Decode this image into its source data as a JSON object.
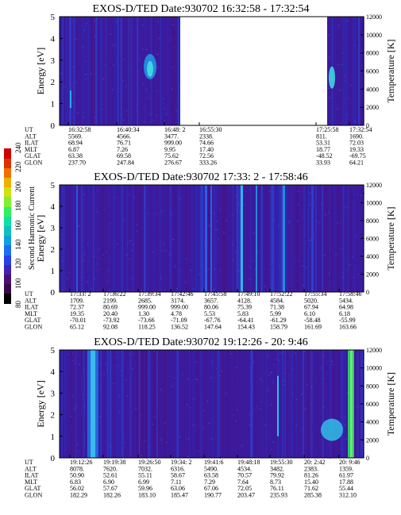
{
  "colorbar": {
    "title": "Second Harmonic Current",
    "ticks": [
      "80",
      "100",
      "120",
      "140",
      "160",
      "180",
      "200",
      "220",
      "240"
    ],
    "colors": [
      "#000000",
      "#3a0a46",
      "#4a1078",
      "#4024b0",
      "#2a40e8",
      "#1a70f0",
      "#10a0e0",
      "#10c0c0",
      "#10e0a0",
      "#30f060",
      "#80f030",
      "#d0e010",
      "#f0b000",
      "#f07000",
      "#e03000",
      "#d00000"
    ]
  },
  "panels": [
    {
      "title": "EXOS-D/TED   Date:930702  16:32:58 - 17:32:54",
      "ylabel": "Energy [eV]",
      "y2label": "Temperature [K]",
      "yticks": [
        "0",
        "1",
        "2",
        "3",
        "4",
        "5"
      ],
      "y2ticks": [
        "0",
        "2000",
        "4000",
        "6000",
        "8000",
        "10000",
        "12000"
      ],
      "row_labels": [
        "UT",
        "ALT",
        "ILAT",
        "MLT",
        "GLAT",
        "GLON"
      ],
      "columns": [
        [
          "16:32:58",
          "5569.",
          "68.94",
          "6.87",
          "63.38",
          "237.70"
        ],
        [
          "16:40:34",
          "4566.",
          "76.71",
          "7.26",
          "69.58",
          "247.84"
        ],
        [
          "16:48: 2",
          "3477.",
          "999.00",
          "9.95",
          "75.62",
          "276.67"
        ],
        [
          "16:55:30",
          "2338.",
          "74.66",
          "17.40",
          "72.56",
          "333.26"
        ],
        [
          "17:25:58",
          "811.",
          "53.31",
          "18.77",
          "-48.52",
          "33.93"
        ],
        [
          "17:32:54",
          "1690.",
          "72.03",
          "19.33",
          "-69.75",
          "64.21"
        ]
      ]
    },
    {
      "title": "EXOS-D/TED   Date:930702  17:33: 2 - 17:58:46",
      "ylabel": "Energy [eV]",
      "y2label": "Temperature [K]",
      "yticks": [
        "0",
        "1",
        "2",
        "3",
        "4",
        "5"
      ],
      "y2ticks": [
        "0",
        "2000",
        "4000",
        "6000",
        "8000",
        "10000",
        "12000"
      ],
      "row_labels": [
        "UT",
        "ALT",
        "ILAT",
        "MLT",
        "GLAT",
        "GLON"
      ],
      "columns": [
        [
          "17:33: 2",
          "1709.",
          "72.37",
          "19.35",
          "-70.01",
          "65.12"
        ],
        [
          "17:36:22",
          "2199.",
          "80.69",
          "20.40",
          "-73.92",
          "92.08"
        ],
        [
          "17:39:34",
          "2685.",
          "999.00",
          "1.30",
          "-73.66",
          "118.25"
        ],
        [
          "17:42:46",
          "3174.",
          "999.00",
          "4.78",
          "-71.09",
          "136.52"
        ],
        [
          "17:45:58",
          "3657.",
          "80.06",
          "5.53",
          "-67.76",
          "147.64"
        ],
        [
          "17:49:10",
          "4128.",
          "75.39",
          "5.83",
          "-64.41",
          "154.43"
        ],
        [
          "17:52:22",
          "4584.",
          "71.38",
          "5.99",
          "-61.29",
          "158.79"
        ],
        [
          "17:55:34",
          "5020.",
          "67.94",
          "6.10",
          "-58.48",
          "161.69"
        ],
        [
          "17:58:46",
          "5434.",
          "64.98",
          "6.18",
          "-55.99",
          "163.66"
        ]
      ]
    },
    {
      "title": "EXOS-D/TED   Date:930702  19:12:26 - 20: 9:46",
      "ylabel": "Energy [eV]",
      "y2label": "Temperature [K]",
      "yticks": [
        "0",
        "1",
        "2",
        "3",
        "4",
        "5"
      ],
      "y2ticks": [
        "0",
        "2000",
        "4000",
        "6000",
        "8000",
        "10000",
        "12000"
      ],
      "row_labels": [
        "UT",
        "ALT",
        "ILAT",
        "MLT",
        "GLAT",
        "GLON"
      ],
      "columns": [
        [
          "19:12:26",
          "8078.",
          "50.90",
          "6.83",
          "56.02",
          "182.29"
        ],
        [
          "19:19:38",
          "7620.",
          "52.61",
          "6.90",
          "57.67",
          "182.26"
        ],
        [
          "19:26:50",
          "7032.",
          "55.11",
          "6.99",
          "59.96",
          "183.10"
        ],
        [
          "19:34: 2",
          "6316.",
          "58.67",
          "7.11",
          "63.06",
          "185.47"
        ],
        [
          "19:41:6",
          "5490.",
          "63.58",
          "7.29",
          "67.06",
          "190.77"
        ],
        [
          "19:48:18",
          "4534.",
          "70.57",
          "7.64",
          "72.05",
          "203.47"
        ],
        [
          "19:55:30",
          "3482.",
          "79.92",
          "8.73",
          "76.11",
          "235.93"
        ],
        [
          "20: 2:42",
          "2383.",
          "81.26",
          "15.40",
          "71.62",
          "285.38"
        ],
        [
          "20: 9:46",
          "1359.",
          "61.97",
          "17.88",
          "55.44",
          "312.10"
        ]
      ]
    }
  ],
  "chart_data": [
    {
      "type": "heatmap",
      "title": "EXOS-D/TED   Date:930702  16:32:58 - 17:32:54",
      "ylabel": "Energy [eV]",
      "y2label": "Temperature [K]",
      "ylim": [
        0,
        5
      ],
      "y2lim": [
        0,
        12000
      ],
      "x_tick_labels": [
        "16:32:58",
        "16:40:34",
        "16:48: 2",
        "16:55:30",
        "17:25:58",
        "17:32:54"
      ],
      "data_gap": [
        "16:55:30",
        "17:25:58"
      ],
      "features": [
        {
          "ut_range": [
            "16:36:40",
            "16:37:10"
          ],
          "energy_range": [
            0.8,
            1.6
          ],
          "level": "high"
        },
        {
          "ut_range": [
            "16:52:00",
            "16:54:40"
          ],
          "energy_range": [
            2.2,
            3.3
          ],
          "level": "high"
        },
        {
          "ut_range": [
            "17:26:10",
            "17:27:30"
          ],
          "energy_range": [
            1.7,
            2.8
          ],
          "level": "high"
        }
      ]
    },
    {
      "type": "heatmap",
      "title": "EXOS-D/TED   Date:930702  17:33: 2 - 17:58:46",
      "ylabel": "Energy [eV]",
      "y2label": "Temperature [K]",
      "ylim": [
        0,
        5
      ],
      "y2lim": [
        0,
        12000
      ],
      "x_tick_labels": [
        "17:33: 2",
        "17:36:22",
        "17:39:34",
        "17:42:46",
        "17:45:58",
        "17:49:10",
        "17:52:22",
        "17:55:34",
        "17:58:46"
      ],
      "features": [
        {
          "ut_range": [
            "17:48:40",
            "17:49:00"
          ],
          "energy_range": [
            0,
            5
          ],
          "level": "high"
        },
        {
          "ut_range": [
            "17:45:10",
            "17:45:50"
          ],
          "energy_range": [
            0,
            5
          ],
          "level": "medium"
        },
        {
          "ut_range": [
            "17:53:30",
            "17:53:50"
          ],
          "energy_range": [
            0,
            5
          ],
          "level": "medium"
        }
      ]
    },
    {
      "type": "heatmap",
      "title": "EXOS-D/TED   Date:930702  19:12:26 - 20: 9:46",
      "ylabel": "Energy [eV]",
      "y2label": "Temperature [K]",
      "ylim": [
        0,
        5
      ],
      "y2lim": [
        0,
        12000
      ],
      "x_tick_labels": [
        "19:12:26",
        "19:19:38",
        "19:26:50",
        "19:34: 2",
        "19:41:6",
        "19:48:18",
        "19:55:30",
        "20: 2:42",
        "20: 9:46"
      ],
      "features": [
        {
          "ut_range": [
            "19:17:40",
            "19:19:40"
          ],
          "energy_range": [
            0,
            5
          ],
          "level": "high"
        },
        {
          "ut_range": [
            "20: 2:42",
            "20: 6:30"
          ],
          "energy_range": [
            0.6,
            2.0
          ],
          "level": "high"
        },
        {
          "ut_range": [
            "20: 8:20",
            "20: 9:40"
          ],
          "energy_range": [
            0,
            5
          ],
          "level": "high"
        }
      ]
    }
  ]
}
